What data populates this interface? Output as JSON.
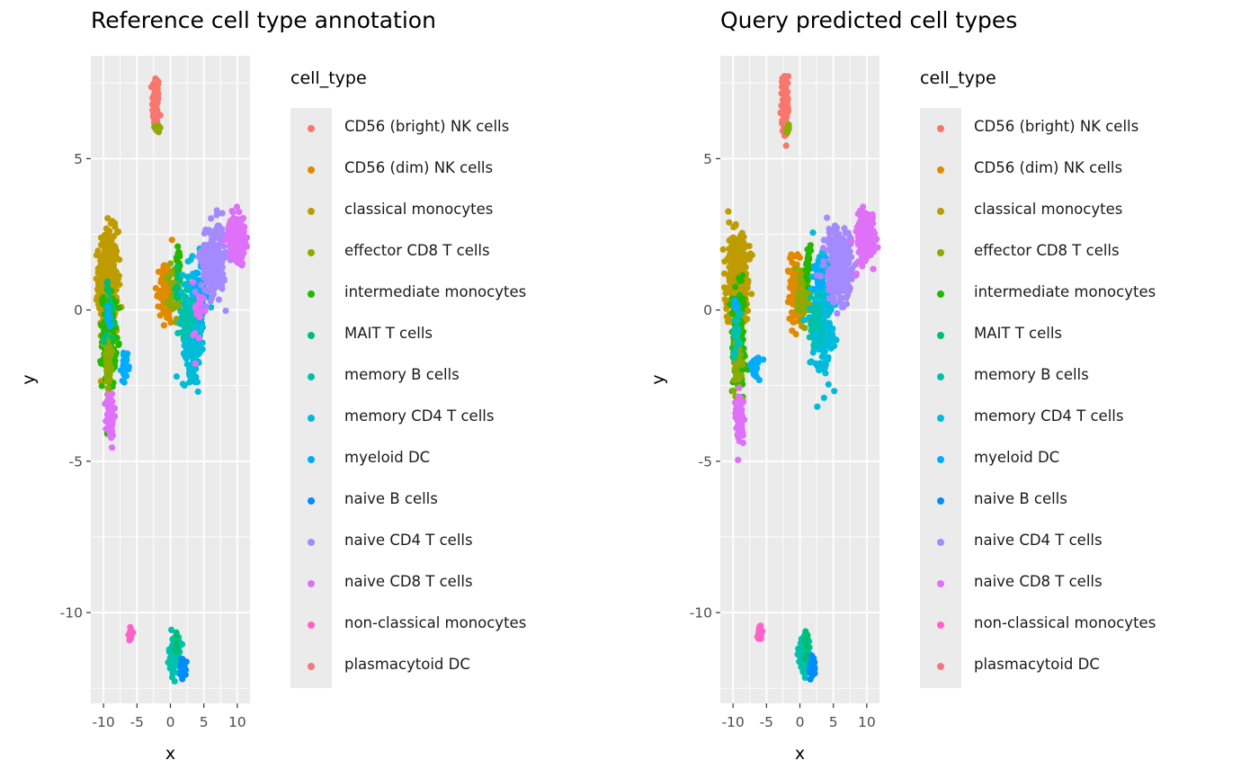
{
  "chart_data": [
    {
      "type": "scatter",
      "title": "Reference cell type annotation",
      "xlabel": "x",
      "ylabel": "y",
      "xlim": [
        -11.9,
        11.9
      ],
      "ylim": [
        -13.0,
        8.4
      ],
      "xticks": [
        -10,
        -5,
        0,
        5,
        10
      ],
      "xtick_labels": [
        "-10",
        "-5",
        "0",
        "5",
        "10"
      ],
      "yticks": [
        -10,
        -5,
        0,
        5
      ],
      "ytick_labels": [
        "-10",
        "-5",
        "0",
        "5"
      ],
      "grid": true,
      "legend": {
        "title": "cell_type",
        "position": "right"
      },
      "clusters": [
        {
          "cell_type": "CD56 (bright) NK cells",
          "cx": -2.2,
          "cy": 6.8,
          "sx": 0.25,
          "sy": 0.5,
          "n": 90
        },
        {
          "cell_type": "effector CD8 T cells",
          "cx": -1.8,
          "cy": 6.0,
          "sx": 0.15,
          "sy": 0.1,
          "n": 12
        },
        {
          "cell_type": "classical monocytes",
          "cx": -9.3,
          "cy": 1.0,
          "sx": 0.7,
          "sy": 0.8,
          "n": 420
        },
        {
          "cell_type": "intermediate monocytes",
          "cx": -9.2,
          "cy": -1.0,
          "sx": 0.5,
          "sy": 0.8,
          "n": 160
        },
        {
          "cell_type": "effector CD8 T cells",
          "cx": -9.3,
          "cy": -1.8,
          "sx": 0.3,
          "sy": 0.6,
          "n": 50
        },
        {
          "cell_type": "MAIT T cells",
          "cx": -9.2,
          "cy": 0.0,
          "sx": 0.4,
          "sy": 0.5,
          "n": 30
        },
        {
          "cell_type": "myeloid DC",
          "cx": -6.7,
          "cy": -1.9,
          "sx": 0.3,
          "sy": 0.2,
          "n": 25
        },
        {
          "cell_type": "myeloid DC",
          "cx": -9.5,
          "cy": -0.4,
          "sx": 0.2,
          "sy": 0.2,
          "n": 6
        },
        {
          "cell_type": "naive CD8 T cells",
          "cx": -9.0,
          "cy": -3.5,
          "sx": 0.3,
          "sy": 0.4,
          "n": 80
        },
        {
          "cell_type": "CD56 (dim) NK cells",
          "cx": -0.6,
          "cy": 0.6,
          "sx": 0.5,
          "sy": 0.5,
          "n": 110
        },
        {
          "cell_type": "effector CD8 T cells",
          "cx": 0.6,
          "cy": 0.5,
          "sx": 0.5,
          "sy": 0.5,
          "n": 45
        },
        {
          "cell_type": "intermediate monocytes",
          "cx": 1.2,
          "cy": 1.5,
          "sx": 0.2,
          "sy": 0.3,
          "n": 20
        },
        {
          "cell_type": "MAIT T cells",
          "cx": 1.2,
          "cy": 0.8,
          "sx": 0.3,
          "sy": 0.3,
          "n": 15
        },
        {
          "cell_type": "memory CD4 T cells",
          "cx": 3.5,
          "cy": -0.3,
          "sx": 0.8,
          "sy": 0.9,
          "n": 260
        },
        {
          "cell_type": "memory B cells",
          "cx": 2.3,
          "cy": -0.3,
          "sx": 0.6,
          "sy": 0.4,
          "n": 40
        },
        {
          "cell_type": "myeloid DC",
          "cx": 4.5,
          "cy": 0.5,
          "sx": 0.5,
          "sy": 0.4,
          "n": 25
        },
        {
          "cell_type": "naive CD4 T cells",
          "cx": 6.4,
          "cy": 1.7,
          "sx": 0.9,
          "sy": 0.6,
          "n": 220
        },
        {
          "cell_type": "naive CD8 T cells",
          "cx": 9.9,
          "cy": 2.4,
          "sx": 0.6,
          "sy": 0.35,
          "n": 280
        },
        {
          "cell_type": "naive CD8 T cells",
          "cx": 4.2,
          "cy": -0.2,
          "sx": 0.4,
          "sy": 0.6,
          "n": 20
        },
        {
          "cell_type": "non-classical monocytes",
          "cx": -6.0,
          "cy": -10.7,
          "sx": 0.15,
          "sy": 0.12,
          "n": 15
        },
        {
          "cell_type": "memory B cells",
          "cx": 0.6,
          "cy": -11.4,
          "sx": 0.4,
          "sy": 0.3,
          "n": 90
        },
        {
          "cell_type": "MAIT T cells",
          "cx": 0.9,
          "cy": -11.0,
          "sx": 0.1,
          "sy": 0.2,
          "n": 10
        },
        {
          "cell_type": "naive B cells",
          "cx": 1.9,
          "cy": -11.8,
          "sx": 0.2,
          "sy": 0.15,
          "n": 60
        }
      ]
    },
    {
      "type": "scatter",
      "title": "Query predicted cell types",
      "xlabel": "x",
      "ylabel": "y",
      "xlim": [
        -11.9,
        11.9
      ],
      "ylim": [
        -13.0,
        8.4
      ],
      "xticks": [
        -10,
        -5,
        0,
        5,
        10
      ],
      "xtick_labels": [
        "-10",
        "-5",
        "0",
        "5",
        "10"
      ],
      "yticks": [
        -10,
        -5,
        0,
        5
      ],
      "ytick_labels": [
        "-10",
        "-5",
        "0",
        "5"
      ],
      "grid": true,
      "legend": {
        "title": "cell_type",
        "position": "right"
      },
      "clusters": [
        {
          "cell_type": "CD56 (bright) NK cells",
          "cx": -2.2,
          "cy": 6.8,
          "sx": 0.25,
          "sy": 0.5,
          "n": 90
        },
        {
          "cell_type": "effector CD8 T cells",
          "cx": -1.8,
          "cy": 6.0,
          "sx": 0.15,
          "sy": 0.1,
          "n": 12
        },
        {
          "cell_type": "classical monocytes",
          "cx": -9.3,
          "cy": 1.0,
          "sx": 0.7,
          "sy": 0.8,
          "n": 420
        },
        {
          "cell_type": "intermediate monocytes",
          "cx": -9.2,
          "cy": -1.0,
          "sx": 0.5,
          "sy": 0.8,
          "n": 160
        },
        {
          "cell_type": "effector CD8 T cells",
          "cx": -9.3,
          "cy": -1.8,
          "sx": 0.3,
          "sy": 0.6,
          "n": 50
        },
        {
          "cell_type": "memory B cells",
          "cx": -9.4,
          "cy": -0.8,
          "sx": 0.3,
          "sy": 0.4,
          "n": 25
        },
        {
          "cell_type": "myeloid DC",
          "cx": -6.7,
          "cy": -1.9,
          "sx": 0.3,
          "sy": 0.2,
          "n": 25
        },
        {
          "cell_type": "myeloid DC",
          "cx": -9.5,
          "cy": 0.0,
          "sx": 0.2,
          "sy": 0.2,
          "n": 6
        },
        {
          "cell_type": "naive CD8 T cells",
          "cx": -9.0,
          "cy": -3.5,
          "sx": 0.3,
          "sy": 0.4,
          "n": 80
        },
        {
          "cell_type": "CD56 (dim) NK cells",
          "cx": -0.6,
          "cy": 0.6,
          "sx": 0.5,
          "sy": 0.5,
          "n": 110
        },
        {
          "cell_type": "effector CD8 T cells",
          "cx": 0.6,
          "cy": 0.5,
          "sx": 0.5,
          "sy": 0.5,
          "n": 45
        },
        {
          "cell_type": "intermediate monocytes",
          "cx": 1.2,
          "cy": 1.5,
          "sx": 0.2,
          "sy": 0.3,
          "n": 20
        },
        {
          "cell_type": "memory CD4 T cells",
          "cx": 3.4,
          "cy": -0.2,
          "sx": 0.8,
          "sy": 0.9,
          "n": 260
        },
        {
          "cell_type": "memory B cells",
          "cx": 2.3,
          "cy": -0.4,
          "sx": 0.6,
          "sy": 0.4,
          "n": 40
        },
        {
          "cell_type": "myeloid DC",
          "cx": 3.0,
          "cy": 1.2,
          "sx": 0.5,
          "sy": 0.4,
          "n": 20
        },
        {
          "cell_type": "naive CD4 T cells",
          "cx": 6.0,
          "cy": 1.5,
          "sx": 1.0,
          "sy": 0.6,
          "n": 240
        },
        {
          "cell_type": "naive CD8 T cells",
          "cx": 9.9,
          "cy": 2.4,
          "sx": 0.6,
          "sy": 0.35,
          "n": 280
        },
        {
          "cell_type": "non-classical monocytes",
          "cx": -6.0,
          "cy": -10.7,
          "sx": 0.15,
          "sy": 0.12,
          "n": 15
        },
        {
          "cell_type": "memory B cells",
          "cx": 0.6,
          "cy": -11.4,
          "sx": 0.4,
          "sy": 0.3,
          "n": 90
        },
        {
          "cell_type": "MAIT T cells",
          "cx": 0.9,
          "cy": -11.0,
          "sx": 0.1,
          "sy": 0.2,
          "n": 10
        },
        {
          "cell_type": "naive B cells",
          "cx": 1.9,
          "cy": -11.8,
          "sx": 0.2,
          "sy": 0.15,
          "n": 60
        }
      ]
    }
  ],
  "legend": {
    "title": "cell_type",
    "items": [
      {
        "label": "CD56 (bright) NK cells",
        "color": "#F8766D"
      },
      {
        "label": "CD56 (dim) NK cells",
        "color": "#E18A00"
      },
      {
        "label": "classical monocytes",
        "color": "#BE9C00"
      },
      {
        "label": "effector CD8 T cells",
        "color": "#8CAB00"
      },
      {
        "label": "intermediate monocytes",
        "color": "#24B700"
      },
      {
        "label": "MAIT T cells",
        "color": "#00BE70"
      },
      {
        "label": "memory B cells",
        "color": "#00C1AB"
      },
      {
        "label": "memory CD4 T cells",
        "color": "#00BBDA"
      },
      {
        "label": "myeloid DC",
        "color": "#00ACFC"
      },
      {
        "label": "naive B cells",
        "color": "#008CF9"
      },
      {
        "label": "naive CD4 T cells",
        "color": "#A58AFF"
      },
      {
        "label": "naive CD8 T cells",
        "color": "#DF70F8"
      },
      {
        "label": "non-classical monocytes",
        "color": "#FF61C9"
      },
      {
        "label": "plasmacytoid DC",
        "color": "#F8767D"
      }
    ]
  },
  "style": {
    "panel_bg": "#EBEBEB",
    "grid_color": "#FFFFFF",
    "tick_color": "#333333"
  }
}
